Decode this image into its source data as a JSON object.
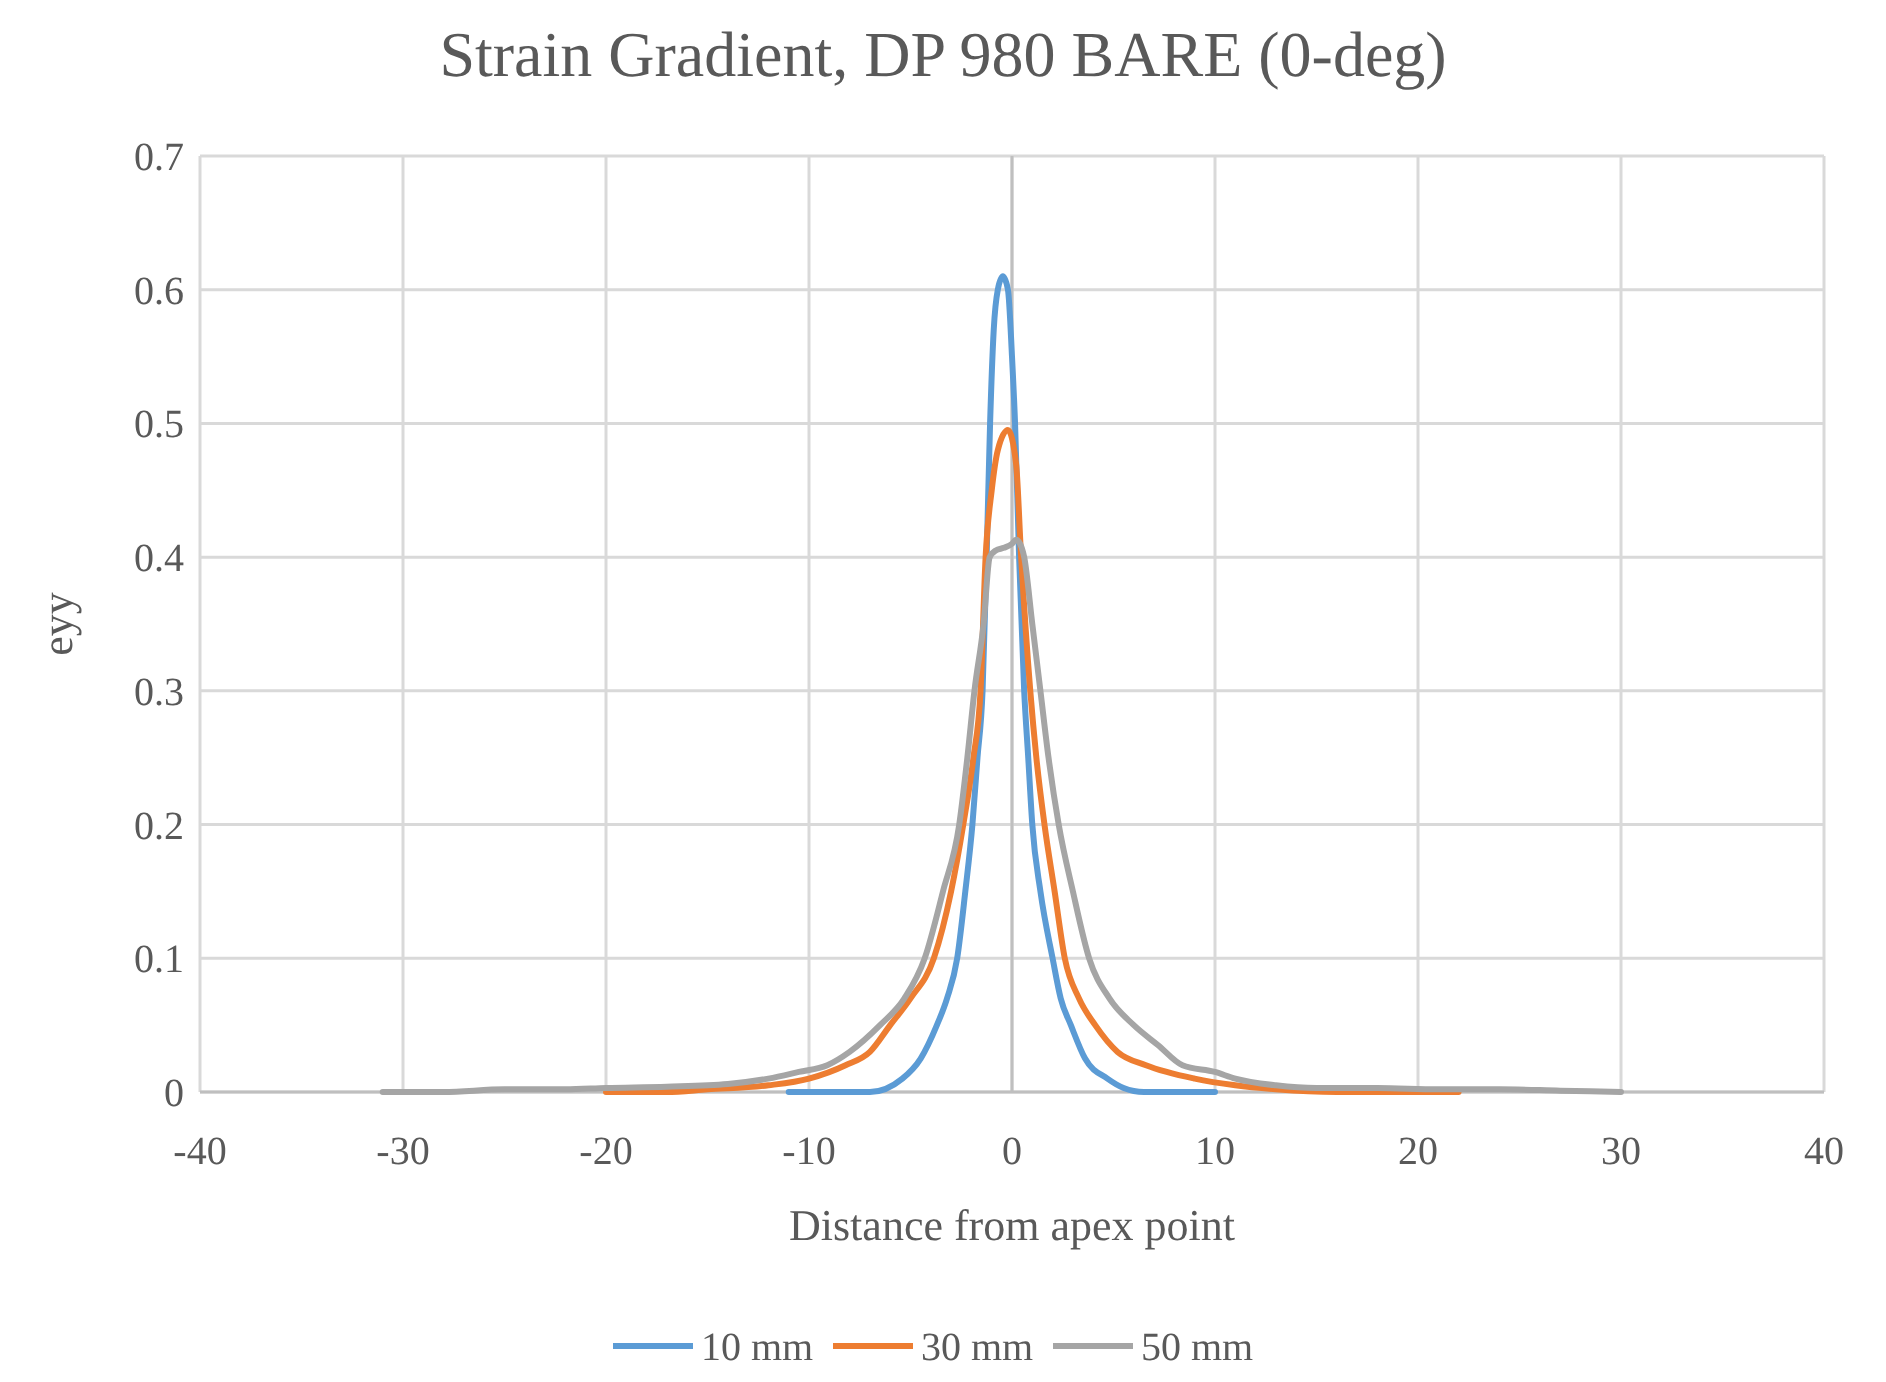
{
  "chart_data": {
    "type": "line",
    "title": "Strain Gradient, DP 980 BARE (0-deg)",
    "xlabel": "Distance from apex point",
    "ylabel": "eyy",
    "xlim": [
      -40,
      40
    ],
    "xticks": [
      -40,
      -30,
      -20,
      -10,
      0,
      10,
      20,
      30,
      40
    ],
    "ylim": [
      0,
      0.7
    ],
    "yticks": [
      0,
      0.1,
      0.2,
      0.3,
      0.4,
      0.5,
      0.6,
      0.7
    ],
    "grid": true,
    "legend": "bottom",
    "marker": "none",
    "line_style": "solid",
    "series": [
      {
        "name": "10 mm",
        "color": "#5b9bd5",
        "x": [
          -11,
          -9,
          -7,
          -5.4,
          -4.5,
          -3.7,
          -3.2,
          -2.7,
          -2.3,
          -1.95,
          -1.7,
          -1.45,
          -1.25,
          -1.08,
          -0.9,
          -0.7,
          -0.45,
          -0.2,
          0,
          0.15,
          0.35,
          0.6,
          0.8,
          1.0,
          1.4,
          2.0,
          2.4,
          2.9,
          3.6,
          4.7,
          5.5,
          6.5,
          8,
          10
        ],
        "values": [
          0,
          0,
          0,
          0.01,
          0.025,
          0.05,
          0.07,
          0.1,
          0.15,
          0.2,
          0.25,
          0.3,
          0.4,
          0.5,
          0.57,
          0.6,
          0.61,
          0.6,
          0.55,
          0.5,
          0.4,
          0.3,
          0.25,
          0.2,
          0.15,
          0.1,
          0.07,
          0.05,
          0.025,
          0.01,
          0.003,
          0,
          0,
          0
        ]
      },
      {
        "name": "30 mm",
        "color": "#ed7d31",
        "x": [
          -20,
          -17,
          -15,
          -12,
          -10,
          -8.2,
          -7,
          -6,
          -5,
          -3.85,
          -3,
          -2.4,
          -1.9,
          -1.55,
          -1.3,
          -1,
          -0.7,
          -0.2,
          0.2,
          0.45,
          0.9,
          1.2,
          1.6,
          2.1,
          2.6,
          3.3,
          4.1,
          5.2,
          6.6,
          9,
          11,
          13,
          16,
          19,
          22
        ],
        "values": [
          0,
          0,
          0.002,
          0.005,
          0.01,
          0.02,
          0.03,
          0.05,
          0.07,
          0.1,
          0.15,
          0.2,
          0.25,
          0.3,
          0.4,
          0.45,
          0.48,
          0.495,
          0.47,
          0.4,
          0.3,
          0.25,
          0.2,
          0.15,
          0.1,
          0.07,
          0.05,
          0.03,
          0.02,
          0.01,
          0.005,
          0.002,
          0,
          0,
          0
        ]
      },
      {
        "name": "50 mm",
        "color": "#a5a5a5",
        "x": [
          -31,
          -28,
          -25,
          -22,
          -20,
          -17,
          -14,
          -12,
          -10.5,
          -9.1,
          -8,
          -6.5,
          -5.3,
          -4.3,
          -3.4,
          -2.6,
          -2.2,
          -1.85,
          -1.4,
          -1.1,
          -0.8,
          -0.4,
          0,
          0.2,
          0.4,
          0.6,
          1.0,
          1.4,
          1.8,
          2.3,
          3,
          3.8,
          4.8,
          6.0,
          7.2,
          8.4,
          10,
          11,
          13,
          15,
          18,
          21,
          24,
          27,
          30
        ],
        "values": [
          0,
          0,
          0.002,
          0.002,
          0.003,
          0.004,
          0.006,
          0.01,
          0.015,
          0.02,
          0.03,
          0.05,
          0.07,
          0.1,
          0.15,
          0.2,
          0.25,
          0.3,
          0.35,
          0.4,
          0.405,
          0.407,
          0.41,
          0.413,
          0.41,
          0.4,
          0.35,
          0.3,
          0.25,
          0.2,
          0.15,
          0.1,
          0.07,
          0.05,
          0.035,
          0.02,
          0.015,
          0.01,
          0.005,
          0.003,
          0.003,
          0.002,
          0.002,
          0.001,
          0
        ]
      }
    ]
  }
}
